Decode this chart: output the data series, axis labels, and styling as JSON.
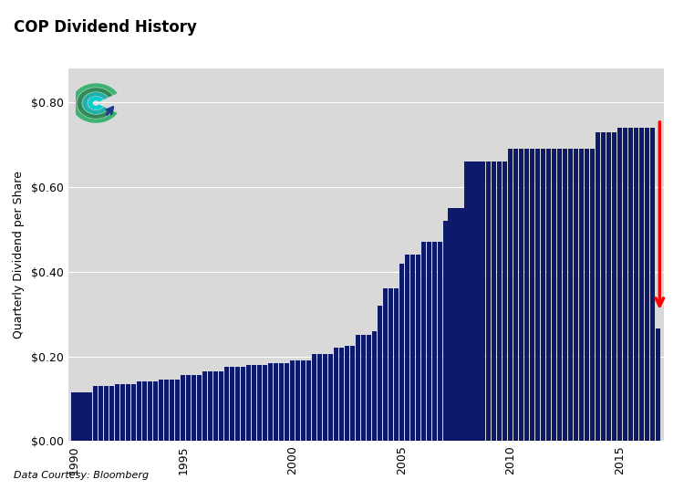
{
  "title": "COP Dividend History",
  "ylabel": "Quarterly Dividend per Share",
  "footnote": "Data Courtesy: Bloomberg",
  "bar_color": "#0D1A6B",
  "background_color": "#D9D9D9",
  "fig_background": "#FFFFFF",
  "arrow_color": "#FF0000",
  "ylim": [
    0.0,
    0.88
  ],
  "yticks": [
    0.0,
    0.2,
    0.4,
    0.6,
    0.8
  ],
  "ytick_labels": [
    "$0.00",
    "$0.20",
    "$0.40",
    "$0.60",
    "$0.80"
  ],
  "dividends": [
    0.115,
    0.115,
    0.115,
    0.115,
    0.13,
    0.13,
    0.13,
    0.13,
    0.135,
    0.135,
    0.135,
    0.135,
    0.14,
    0.14,
    0.14,
    0.14,
    0.145,
    0.145,
    0.145,
    0.145,
    0.155,
    0.155,
    0.155,
    0.155,
    0.165,
    0.165,
    0.165,
    0.165,
    0.175,
    0.175,
    0.175,
    0.175,
    0.18,
    0.18,
    0.18,
    0.18,
    0.185,
    0.185,
    0.185,
    0.185,
    0.19,
    0.19,
    0.19,
    0.19,
    0.205,
    0.205,
    0.205,
    0.205,
    0.22,
    0.22,
    0.225,
    0.225,
    0.25,
    0.25,
    0.25,
    0.26,
    0.32,
    0.36,
    0.36,
    0.36,
    0.42,
    0.44,
    0.44,
    0.44,
    0.47,
    0.47,
    0.47,
    0.47,
    0.52,
    0.55,
    0.55,
    0.55,
    0.66,
    0.66,
    0.66,
    0.66,
    0.66,
    0.66,
    0.66,
    0.66,
    0.69,
    0.69,
    0.69,
    0.69,
    0.69,
    0.69,
    0.69,
    0.69,
    0.69,
    0.69,
    0.69,
    0.69,
    0.69,
    0.69,
    0.69,
    0.69,
    0.73,
    0.73,
    0.73,
    0.73,
    0.74,
    0.74,
    0.74,
    0.74,
    0.74,
    0.74,
    0.74,
    0.265
  ],
  "start_year": 1990,
  "xtick_years": [
    1990,
    1995,
    2000,
    2005,
    2010,
    2015
  ]
}
